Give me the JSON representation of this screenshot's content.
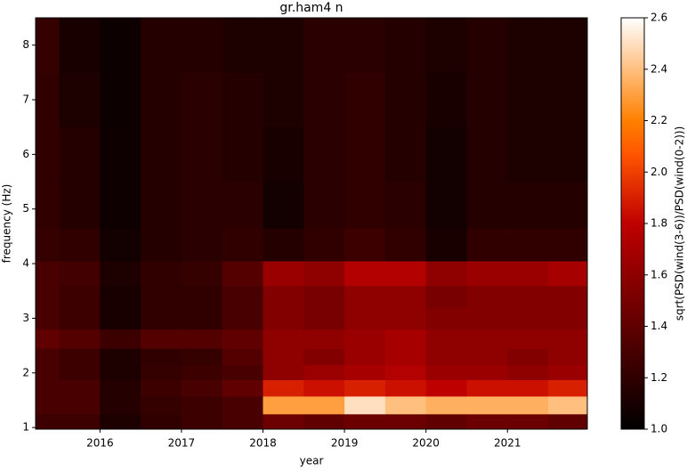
{
  "chart_data": {
    "type": "heatmap",
    "title": "gr.ham4 n",
    "xlabel": "year",
    "ylabel": "frequency (Hz)",
    "colorbar_label": "sqrt(PSD(wind(3-6))/PSD(wind(0-2)))",
    "colormap": "gist_heat",
    "x": [
      2015.25,
      2015.75,
      2016.25,
      2016.75,
      2017.25,
      2017.75,
      2018.25,
      2018.75,
      2019.25,
      2019.75,
      2020.25,
      2020.75,
      2021.25,
      2021.75
    ],
    "y": [
      1.1,
      1.4,
      1.75,
      2.0,
      2.3,
      2.6,
      3.0,
      3.4,
      3.8,
      4.3,
      5.0,
      6.0,
      7.0,
      8.0
    ],
    "z": [
      [
        1.25,
        1.25,
        1.12,
        1.2,
        1.25,
        1.3,
        1.45,
        1.4,
        1.45,
        1.45,
        1.4,
        1.45,
        1.45,
        1.4
      ],
      [
        1.3,
        1.3,
        1.15,
        1.22,
        1.25,
        1.3,
        2.3,
        2.3,
        2.5,
        2.4,
        2.35,
        2.35,
        2.35,
        2.4
      ],
      [
        1.3,
        1.3,
        1.15,
        1.25,
        1.3,
        1.4,
        1.9,
        1.85,
        1.9,
        1.85,
        1.8,
        1.85,
        1.85,
        1.9
      ],
      [
        1.3,
        1.25,
        1.12,
        1.22,
        1.25,
        1.3,
        1.6,
        1.65,
        1.7,
        1.75,
        1.65,
        1.65,
        1.6,
        1.65
      ],
      [
        1.3,
        1.25,
        1.12,
        1.2,
        1.22,
        1.35,
        1.6,
        1.55,
        1.65,
        1.7,
        1.6,
        1.6,
        1.55,
        1.6
      ],
      [
        1.4,
        1.35,
        1.25,
        1.35,
        1.35,
        1.4,
        1.6,
        1.6,
        1.65,
        1.7,
        1.6,
        1.6,
        1.6,
        1.6
      ],
      [
        1.3,
        1.25,
        1.1,
        1.2,
        1.2,
        1.3,
        1.55,
        1.5,
        1.6,
        1.6,
        1.55,
        1.55,
        1.55,
        1.55
      ],
      [
        1.3,
        1.25,
        1.1,
        1.2,
        1.2,
        1.3,
        1.55,
        1.5,
        1.6,
        1.6,
        1.5,
        1.55,
        1.55,
        1.55
      ],
      [
        1.3,
        1.28,
        1.12,
        1.2,
        1.22,
        1.35,
        1.65,
        1.6,
        1.75,
        1.75,
        1.6,
        1.65,
        1.65,
        1.7
      ],
      [
        1.22,
        1.2,
        1.08,
        1.15,
        1.18,
        1.2,
        1.15,
        1.2,
        1.25,
        1.2,
        1.1,
        1.2,
        1.2,
        1.2
      ],
      [
        1.2,
        1.15,
        1.06,
        1.15,
        1.18,
        1.18,
        1.08,
        1.18,
        1.2,
        1.18,
        1.08,
        1.15,
        1.15,
        1.15
      ],
      [
        1.2,
        1.15,
        1.06,
        1.15,
        1.18,
        1.15,
        1.1,
        1.18,
        1.2,
        1.15,
        1.08,
        1.15,
        1.12,
        1.12
      ],
      [
        1.2,
        1.12,
        1.05,
        1.15,
        1.18,
        1.15,
        1.12,
        1.18,
        1.2,
        1.15,
        1.1,
        1.15,
        1.12,
        1.12
      ],
      [
        1.22,
        1.1,
        1.05,
        1.15,
        1.15,
        1.12,
        1.12,
        1.18,
        1.18,
        1.15,
        1.12,
        1.15,
        1.12,
        1.12
      ]
    ],
    "xlim": [
      2015.21,
      2021.98
    ],
    "xticks": [
      2016,
      2017,
      2018,
      2019,
      2020,
      2021
    ],
    "ylim": [
      0.97,
      8.5
    ],
    "yticks": [
      1,
      2,
      3,
      4,
      5,
      6,
      7,
      8
    ],
    "clim": [
      1.0,
      2.6
    ],
    "cticks": [
      {
        "value": 1.0,
        "label": "1.0"
      },
      1.2,
      1.4,
      1.6,
      1.8,
      {
        "value": 2.0,
        "label": "2.0"
      },
      2.2,
      2.4,
      2.6
    ]
  }
}
